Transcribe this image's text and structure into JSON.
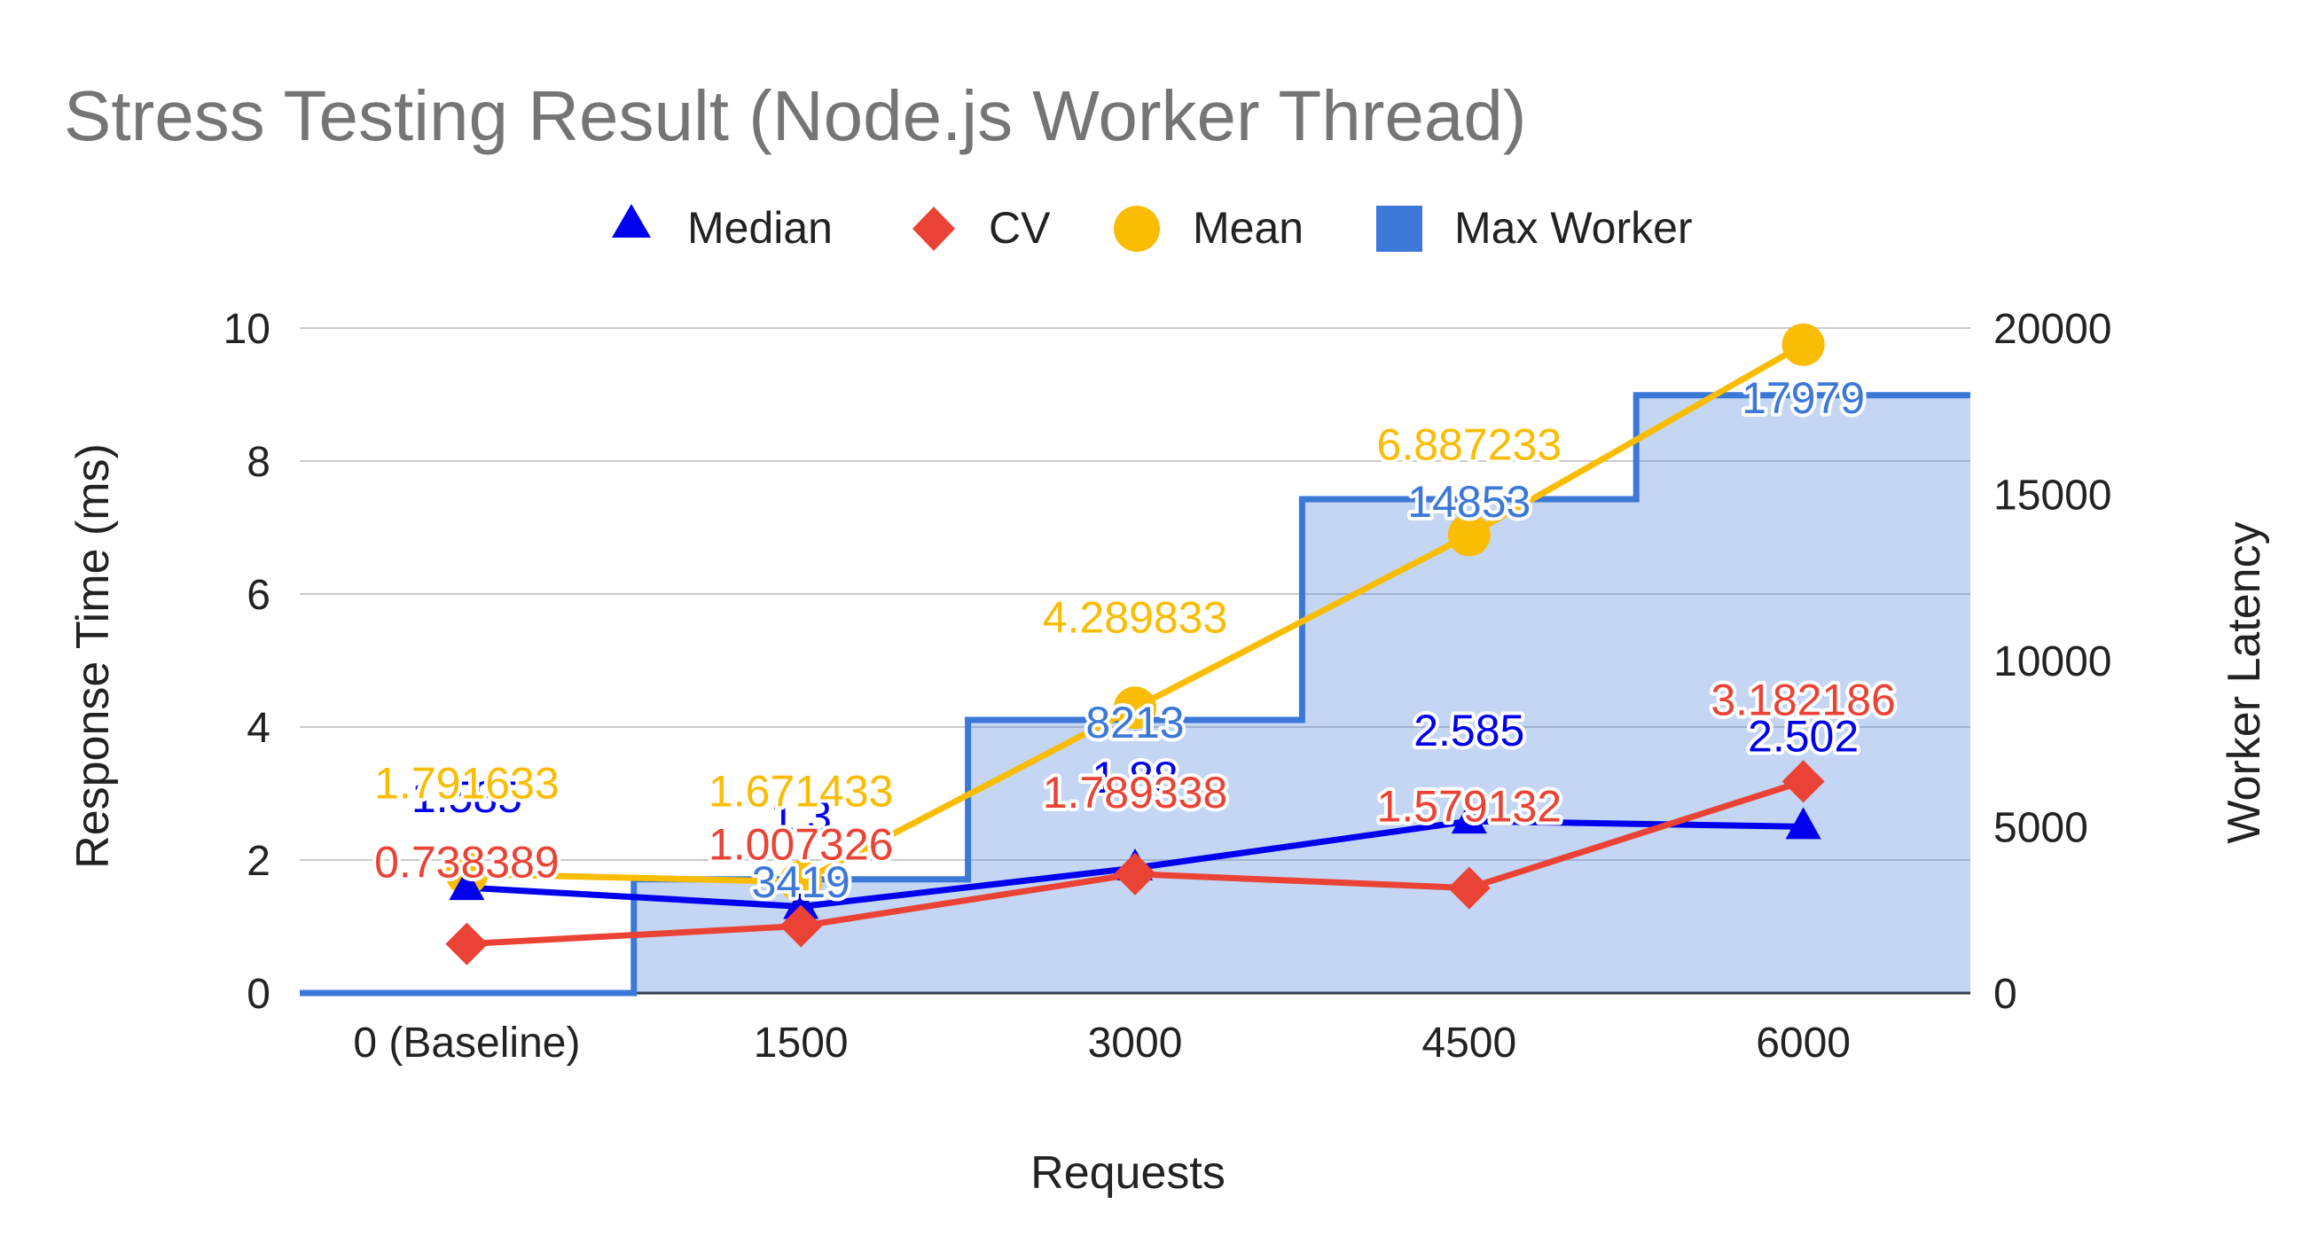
{
  "chart_data": {
    "type": "line",
    "title": "Stress Testing Result (Node.js Worker Thread)",
    "xlabel": "Requests",
    "ylabel": "Response Time (ms)",
    "y2label": "Worker Latency",
    "categories": [
      "0 (Baseline)",
      "1500",
      "3000",
      "4500",
      "6000"
    ],
    "ylim": [
      0,
      10
    ],
    "yticks": [
      "0",
      "2",
      "4",
      "6",
      "8",
      "10"
    ],
    "y2lim": [
      0,
      20000
    ],
    "y2ticks": [
      "0",
      "5000",
      "10000",
      "15000",
      "20000"
    ],
    "grid": true,
    "legend_position": "top",
    "series": [
      {
        "name": "Median",
        "marker": "triangle",
        "color": "#0000ee",
        "axis": "left",
        "values": [
          1.585,
          1.3,
          1.88,
          2.585,
          2.502
        ],
        "labels": [
          "1.585",
          "1.3",
          "1.88",
          "2.585",
          "2.502"
        ]
      },
      {
        "name": "CV",
        "marker": "diamond",
        "color": "#ea4335",
        "axis": "left",
        "values": [
          0.738389,
          1.007326,
          1.789338,
          1.579132,
          3.182186
        ],
        "labels": [
          "0.738389",
          "1.007326",
          "1.789338",
          "1.579132",
          "3.182186"
        ]
      },
      {
        "name": "Mean",
        "marker": "circle",
        "color": "#fbbc04",
        "axis": "left",
        "values": [
          1.791633,
          1.671433,
          4.289833,
          6.887233,
          9.75
        ],
        "labels": [
          "1.791633",
          "1.671433",
          "4.289833",
          "6.887233",
          ""
        ]
      },
      {
        "name": "Max Worker",
        "marker": "square",
        "color": "#3c78d8",
        "axis": "right",
        "style": "stepped-area",
        "values": [
          0,
          3419,
          8213,
          14853,
          17979
        ],
        "labels": [
          "",
          "3419",
          "8213",
          "14853",
          "17979"
        ]
      }
    ]
  }
}
